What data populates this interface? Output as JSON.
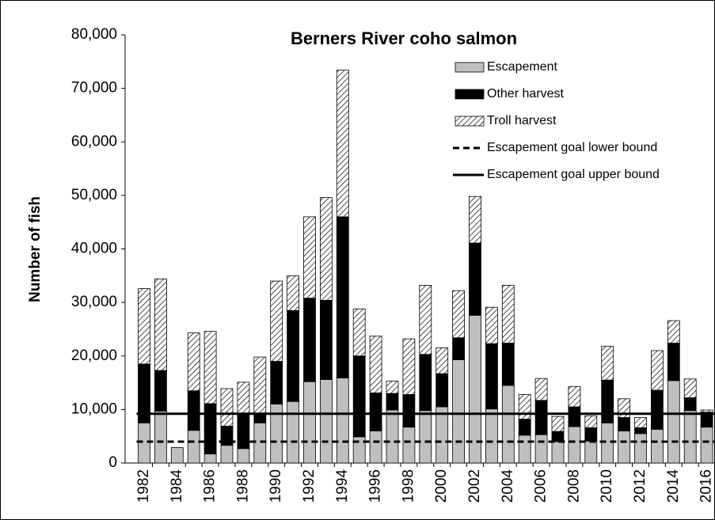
{
  "chart_data": {
    "type": "stacked_bar",
    "title": "Berners River coho salmon",
    "y_label": "Number of fish",
    "categories": [
      1982,
      null,
      1984,
      null,
      1986,
      null,
      1988,
      null,
      1990,
      null,
      1992,
      null,
      1994,
      null,
      1996,
      null,
      1998,
      null,
      2000,
      null,
      2002,
      null,
      2004,
      null,
      2006,
      null,
      2008,
      null,
      2010,
      null,
      2012,
      null,
      2014,
      null,
      2016
    ],
    "series": [
      {
        "name": "Escapement",
        "color": "#bfbfbf",
        "values": [
          7500,
          9700,
          2900,
          6100,
          1700,
          3300,
          2700,
          7500,
          11000,
          11500,
          15200,
          15600,
          15900,
          4900,
          6000,
          9900,
          6700,
          9800,
          10500,
          19300,
          27600,
          10100,
          14500,
          5200,
          5300,
          4000,
          6800,
          4100,
          7500,
          6000,
          5500,
          6300,
          15400,
          9800,
          6700
        ]
      },
      {
        "name": "Other harvest",
        "color": "#000000",
        "values": [
          11000,
          7600,
          0,
          7400,
          9400,
          3600,
          6600,
          1800,
          8000,
          17000,
          15600,
          14800,
          30100,
          15100,
          7100,
          3100,
          6100,
          10500,
          6200,
          4100,
          13500,
          12200,
          7900,
          3000,
          6400,
          1900,
          3700,
          2500,
          8000,
          2500,
          1100,
          7300,
          7000,
          2400,
          2800
        ]
      },
      {
        "name": "Troll harvest",
        "color": "hatch",
        "values": [
          14100,
          17100,
          0,
          10800,
          13500,
          7000,
          5800,
          10500,
          15000,
          6500,
          15200,
          19200,
          27400,
          8800,
          10600,
          2300,
          10400,
          12900,
          4800,
          8800,
          8700,
          6800,
          10800,
          4600,
          4100,
          2800,
          3800,
          2200,
          6300,
          3500,
          1900,
          7400,
          4200,
          3500,
          400
        ]
      }
    ],
    "reference_lines": [
      {
        "name": "Escapement goal lower bound",
        "value": 4000,
        "style": "dashed",
        "color": "#000000"
      },
      {
        "name": "Escapement goal upper bound",
        "value": 9200,
        "style": "solid",
        "color": "#000000"
      }
    ],
    "ylim": [
      0,
      80000
    ],
    "yticks": [
      0,
      {
        "value": 10000,
        "label": "10,000"
      },
      {
        "value": 20000,
        "label": "20,000"
      },
      {
        "value": 30000,
        "label": "30,000"
      },
      {
        "value": 40000,
        "label": "40,000"
      },
      {
        "value": 50000,
        "label": "50,000"
      },
      {
        "value": 60000,
        "label": "60,000"
      },
      {
        "value": 70000,
        "label": "70,000"
      },
      {
        "value": 80000,
        "label": "80,000"
      }
    ],
    "legend": "upper right",
    "grid": false
  }
}
